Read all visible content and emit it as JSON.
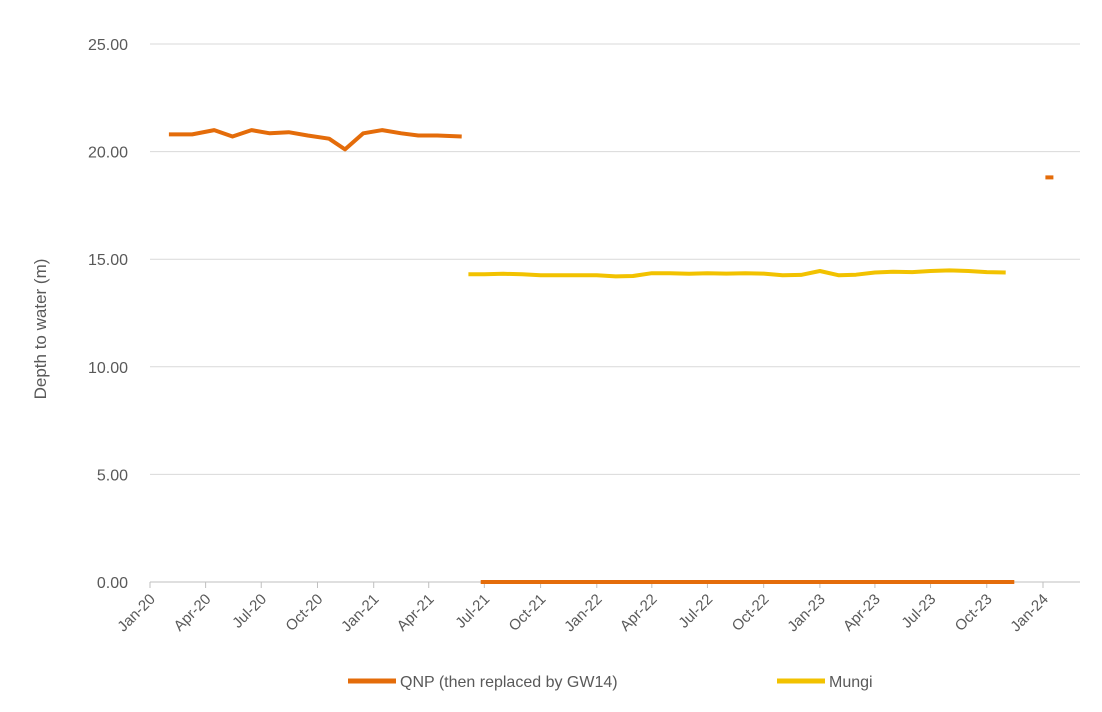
{
  "chart_data": {
    "type": "line",
    "title": "",
    "xlabel": "",
    "ylabel": "Depth to water (m)",
    "ylim": [
      0,
      25
    ],
    "y_ticks": [
      "0.00",
      "5.00",
      "10.00",
      "15.00",
      "20.00",
      "25.00"
    ],
    "x_range": [
      "2020-01-01",
      "2024-01-01"
    ],
    "x_ticks": [
      {
        "date": "2020-01-01",
        "label": "Jan-20"
      },
      {
        "date": "2020-04-01",
        "label": "Apr-20"
      },
      {
        "date": "2020-07-01",
        "label": "Jul-20"
      },
      {
        "date": "2020-10-01",
        "label": "Oct-20"
      },
      {
        "date": "2021-01-01",
        "label": "Jan-21"
      },
      {
        "date": "2021-04-01",
        "label": "Apr-21"
      },
      {
        "date": "2021-07-01",
        "label": "Jul-21"
      },
      {
        "date": "2021-10-01",
        "label": "Oct-21"
      },
      {
        "date": "2022-01-01",
        "label": "Jan-22"
      },
      {
        "date": "2022-04-01",
        "label": "Apr-22"
      },
      {
        "date": "2022-07-01",
        "label": "Jul-22"
      },
      {
        "date": "2022-10-01",
        "label": "Oct-22"
      },
      {
        "date": "2023-01-01",
        "label": "Jan-23"
      },
      {
        "date": "2023-04-01",
        "label": "Apr-23"
      },
      {
        "date": "2023-07-01",
        "label": "Jul-23"
      },
      {
        "date": "2023-10-01",
        "label": "Oct-23"
      },
      {
        "date": "2024-01-01",
        "label": "Jan-24"
      }
    ],
    "grid": true,
    "legend_position": "bottom",
    "series": [
      {
        "name": "QNP (then replaced by GW14)",
        "color": "#E46C0A",
        "segments": [
          [
            [
              "2020-02-01",
              20.8
            ],
            [
              "2020-02-20",
              20.8
            ],
            [
              "2020-03-10",
              20.8
            ],
            [
              "2020-04-15",
              21.0
            ],
            [
              "2020-05-15",
              20.7
            ],
            [
              "2020-06-15",
              21.0
            ],
            [
              "2020-07-15",
              20.85
            ],
            [
              "2020-08-15",
              20.9
            ],
            [
              "2020-09-15",
              20.75
            ],
            [
              "2020-10-20",
              20.6
            ],
            [
              "2020-11-15",
              20.1
            ],
            [
              "2020-12-15",
              20.85
            ],
            [
              "2021-01-15",
              21.0
            ],
            [
              "2021-02-15",
              20.85
            ],
            [
              "2021-03-15",
              20.75
            ],
            [
              "2021-04-15",
              20.75
            ],
            [
              "2021-05-25",
              20.7
            ]
          ],
          [
            [
              "2021-06-25",
              0.0
            ],
            [
              "2023-11-15",
              0.0
            ]
          ],
          [
            [
              "2024-01-05",
              18.8
            ],
            [
              "2024-01-18",
              18.8
            ]
          ]
        ]
      },
      {
        "name": "Mungi",
        "color": "#F2C200",
        "segments": [
          [
            [
              "2021-06-05",
              14.3
            ],
            [
              "2021-07-01",
              14.3
            ],
            [
              "2021-08-01",
              14.32
            ],
            [
              "2021-09-01",
              14.3
            ],
            [
              "2021-10-01",
              14.25
            ],
            [
              "2021-11-01",
              14.25
            ],
            [
              "2021-12-01",
              14.25
            ],
            [
              "2022-01-01",
              14.25
            ],
            [
              "2022-02-01",
              14.2
            ],
            [
              "2022-03-01",
              14.22
            ],
            [
              "2022-04-01",
              14.35
            ],
            [
              "2022-05-01",
              14.35
            ],
            [
              "2022-06-01",
              14.32
            ],
            [
              "2022-07-01",
              14.35
            ],
            [
              "2022-08-01",
              14.33
            ],
            [
              "2022-09-01",
              14.35
            ],
            [
              "2022-10-01",
              14.33
            ],
            [
              "2022-11-01",
              14.25
            ],
            [
              "2022-12-01",
              14.27
            ],
            [
              "2023-01-01",
              14.45
            ],
            [
              "2023-02-01",
              14.25
            ],
            [
              "2023-03-01",
              14.28
            ],
            [
              "2023-04-01",
              14.38
            ],
            [
              "2023-05-01",
              14.42
            ],
            [
              "2023-06-01",
              14.4
            ],
            [
              "2023-07-01",
              14.45
            ],
            [
              "2023-08-01",
              14.48
            ],
            [
              "2023-09-01",
              14.45
            ],
            [
              "2023-10-01",
              14.4
            ],
            [
              "2023-11-01",
              14.38
            ]
          ]
        ]
      }
    ]
  }
}
